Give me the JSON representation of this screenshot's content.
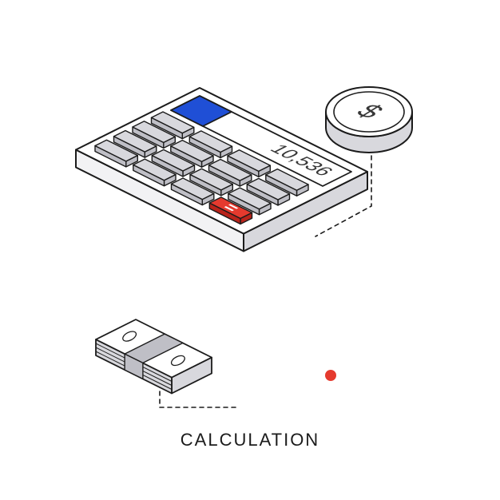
{
  "caption": "CALCULATION",
  "display_value": "10,536",
  "coin_symbol": "$",
  "colors": {
    "background": "#ffffff",
    "outline": "#1b1b1b",
    "body_top": "#ffffff",
    "body_side_light": "#f2f2f4",
    "body_side_dark": "#d8d8dd",
    "screen_fill": "#ffffff",
    "screen_accent": "#1f4fd6",
    "screen_text": "#373737",
    "key_fill": "#d8d8dd",
    "key_side": "#bfbfc6",
    "equals_fill": "#e53a2e",
    "equals_side": "#b9241b",
    "equals_text": "#ffffff",
    "coin_top": "#ffffff",
    "coin_side": "#d8d8dd",
    "coin_text": "#373737",
    "cash_top": "#ffffff",
    "cash_side": "#d8d8dd",
    "cash_accent": "#bfbfc6",
    "connector": "#1b1b1b",
    "deco_circle_stroke": "#bfbfc6",
    "deco_x": "#1b1b1b",
    "deco_dot": "#e53a2e"
  },
  "calculator": {
    "keys_rows": 4,
    "keys_cols": 4,
    "equals_label": "="
  }
}
